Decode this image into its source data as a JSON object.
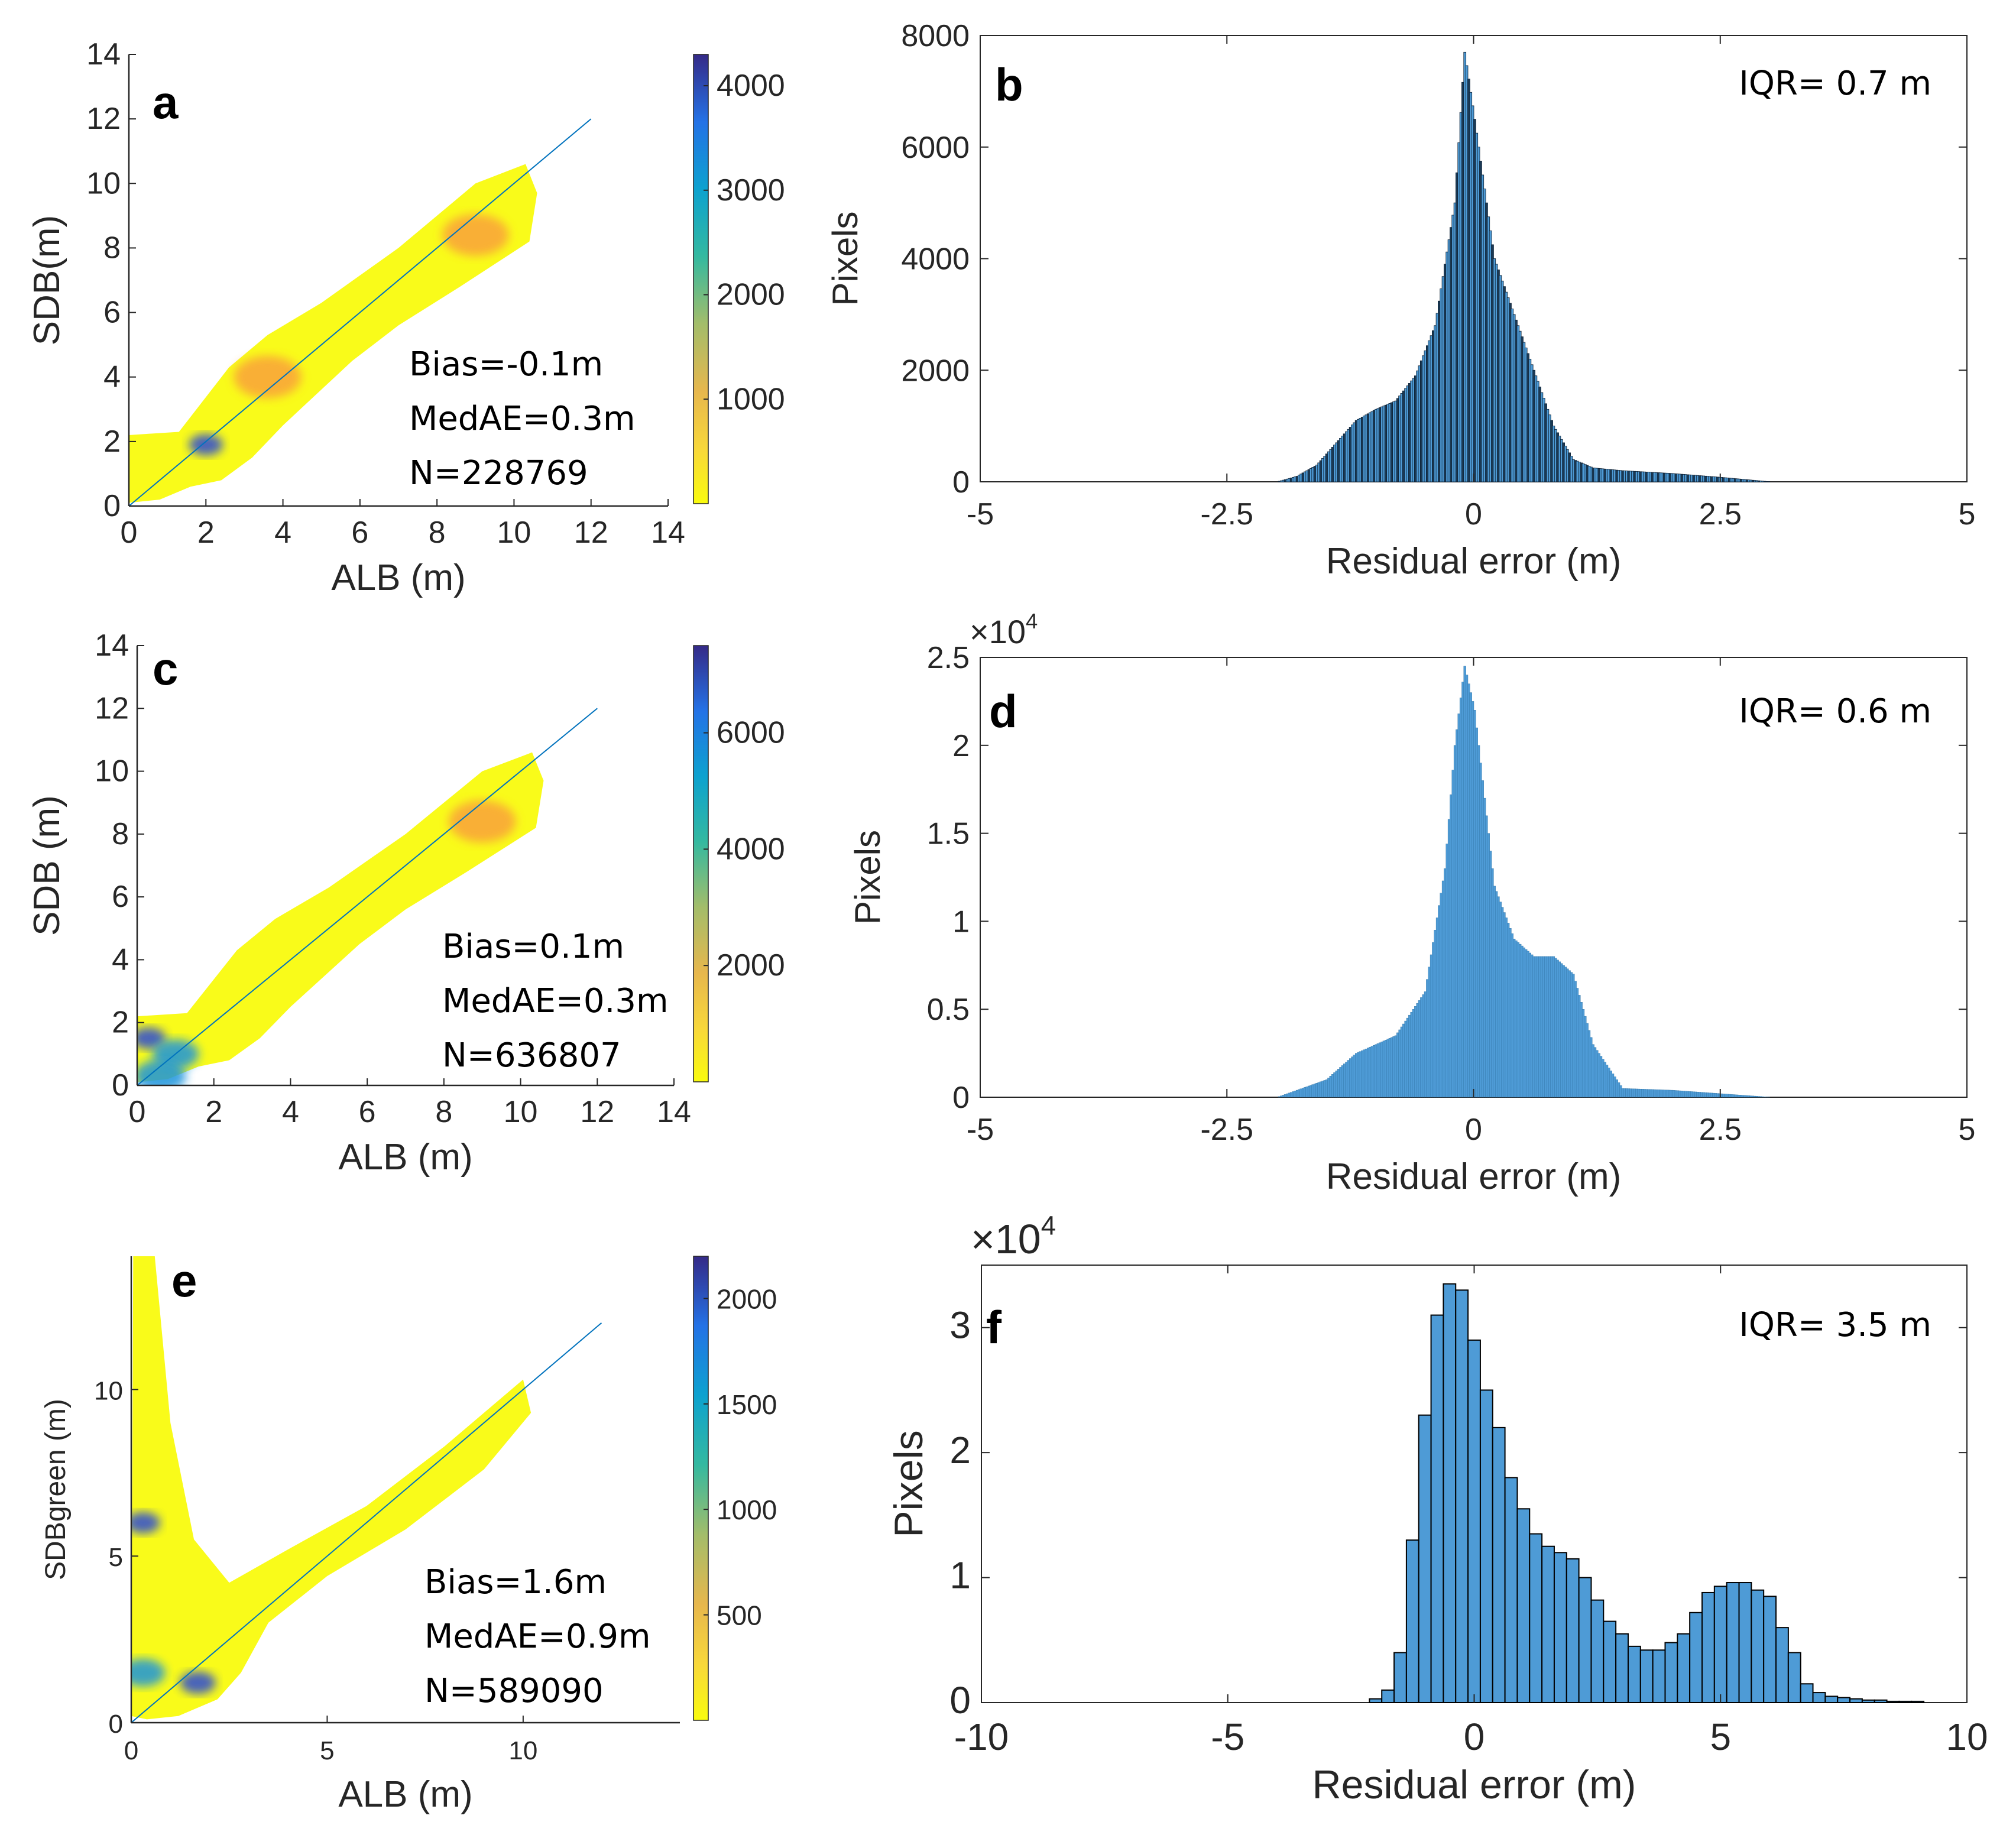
{
  "figure": {
    "panels": [
      {
        "id": "a",
        "letter": "a",
        "title": ""
      },
      {
        "id": "b",
        "letter": "b",
        "title": ""
      },
      {
        "id": "c",
        "letter": "c",
        "title": ""
      },
      {
        "id": "d",
        "letter": "d",
        "title": ""
      },
      {
        "id": "e",
        "letter": "e",
        "title": ""
      },
      {
        "id": "f",
        "letter": "f",
        "title": ""
      }
    ]
  },
  "colors": {
    "axis": "#262626",
    "one_to_one_line": "#0072BD",
    "density_low": "#F9FB0E",
    "density_mid": "#F9A23B",
    "density_high": "#352A87",
    "hist_fill": "#4E9BD6",
    "hist_edge": "#0B1F33"
  },
  "chart_data": [
    {
      "id": "a",
      "type": "scatter",
      "title": "",
      "letter": "a",
      "xlabel": "ALB (m)",
      "ylabel": "SDB(m)",
      "xlim": [
        0,
        14
      ],
      "ylim": [
        0,
        14
      ],
      "xticks": [
        0,
        2,
        4,
        6,
        8,
        10,
        12,
        14
      ],
      "yticks": [
        0,
        2,
        4,
        6,
        8,
        10,
        12,
        14
      ],
      "one_to_one_line": [
        [
          0,
          0
        ],
        [
          12,
          12
        ]
      ],
      "density_hotspots": [
        {
          "x": 2.0,
          "y": 1.9,
          "count": 4300
        },
        {
          "x": 9.0,
          "y": 8.4,
          "count": 600
        },
        {
          "x": 3.6,
          "y": 4.0,
          "count": 500
        }
      ],
      "colorbar": {
        "min": 0,
        "max": 4300,
        "ticks": [
          1000,
          2000,
          3000,
          4000
        ]
      },
      "stats": [
        "Bias=-0.1m",
        "MedAE=0.3m",
        "N=228769"
      ]
    },
    {
      "id": "b",
      "type": "bar",
      "title": "",
      "letter": "b",
      "xlabel": "Residual error (m)",
      "ylabel": "Pixels",
      "xlim": [
        -5,
        5
      ],
      "ylim": [
        0,
        8000
      ],
      "xticks": [
        -5,
        -2.5,
        0,
        2.5,
        5
      ],
      "xtick_labels": [
        "-5",
        "-2.5",
        "0",
        "2.5",
        "5"
      ],
      "yticks": [
        0,
        2000,
        4000,
        6000,
        8000
      ],
      "ytick_labels": [
        "0",
        "2000",
        "4000",
        "6000",
        "8000"
      ],
      "multiplier": "",
      "annotation": "IQR=  0.7 m",
      "x": [
        -2.0,
        -1.8,
        -1.6,
        -1.4,
        -1.2,
        -1.0,
        -0.8,
        -0.6,
        -0.4,
        -0.2,
        -0.1,
        0.0,
        0.2,
        0.4,
        0.6,
        0.8,
        1.0,
        1.2,
        1.5,
        2.0,
        2.5,
        3.0
      ],
      "values": [
        0,
        100,
        300,
        700,
        1100,
        1300,
        1450,
        1900,
        2800,
        5000,
        7700,
        6500,
        4000,
        3000,
        2000,
        1000,
        400,
        250,
        200,
        150,
        80,
        0
      ]
    },
    {
      "id": "c",
      "type": "scatter",
      "title": "",
      "letter": "c",
      "xlabel": "ALB (m)",
      "ylabel": "SDB (m)",
      "xlim": [
        0,
        14
      ],
      "ylim": [
        0,
        14
      ],
      "xticks": [
        0,
        2,
        4,
        6,
        8,
        10,
        12,
        14
      ],
      "yticks": [
        0,
        2,
        4,
        6,
        8,
        10,
        12,
        14
      ],
      "one_to_one_line": [
        [
          0,
          0
        ],
        [
          12,
          12
        ]
      ],
      "density_hotspots": [
        {
          "x": 0.3,
          "y": 1.5,
          "count": 7500
        },
        {
          "x": 1.0,
          "y": 1.0,
          "count": 5000
        },
        {
          "x": 0.6,
          "y": 0.3,
          "count": 4000
        },
        {
          "x": 9.0,
          "y": 8.4,
          "count": 900
        }
      ],
      "colorbar": {
        "min": 0,
        "max": 7500,
        "ticks": [
          2000,
          4000,
          6000
        ]
      },
      "stats": [
        "Bias=0.1m",
        "MedAE=0.3m",
        "N=636807"
      ]
    },
    {
      "id": "d",
      "type": "bar",
      "title": "",
      "letter": "d",
      "xlabel": "Residual error (m)",
      "ylabel": "Pixels",
      "xlim": [
        -5,
        5
      ],
      "ylim": [
        0,
        2.5
      ],
      "xticks": [
        -5,
        -2.5,
        0,
        2.5,
        5
      ],
      "xtick_labels": [
        "-5",
        "-2.5",
        "0",
        "2.5",
        "5"
      ],
      "yticks": [
        0,
        0.5,
        1,
        1.5,
        2,
        2.5
      ],
      "ytick_labels": [
        "0",
        "0.5",
        "1",
        "1.5",
        "2",
        "2.5"
      ],
      "multiplier": "×10",
      "multiplier_exp": "4",
      "annotation": "IQR= 0.6 m",
      "x": [
        -2.0,
        -1.5,
        -1.2,
        -1.0,
        -0.8,
        -0.5,
        -0.3,
        -0.2,
        -0.1,
        0.0,
        0.2,
        0.4,
        0.6,
        0.8,
        1.0,
        1.2,
        1.5,
        2.0,
        2.5,
        3.0
      ],
      "values": [
        0,
        0.1,
        0.25,
        0.3,
        0.35,
        0.6,
        1.3,
        2.0,
        2.45,
        2.2,
        1.2,
        0.9,
        0.8,
        0.8,
        0.7,
        0.3,
        0.05,
        0.04,
        0.02,
        0
      ]
    },
    {
      "id": "e",
      "type": "scatter",
      "title": "",
      "letter": "e",
      "xlabel": "ALB (m)",
      "ylabel": "SDBgreen (m)",
      "xlim": [
        0,
        14
      ],
      "ylim": [
        0,
        14
      ],
      "xticks": [
        0,
        5,
        10
      ],
      "yticks": [
        0,
        5,
        10
      ],
      "one_to_one_line": [
        [
          0,
          0
        ],
        [
          12,
          12
        ]
      ],
      "density_hotspots": [
        {
          "x": 0.3,
          "y": 6.0,
          "count": 2200
        },
        {
          "x": 1.7,
          "y": 1.2,
          "count": 2100
        },
        {
          "x": 0.3,
          "y": 1.5,
          "count": 1600
        }
      ],
      "colorbar": {
        "min": 0,
        "max": 2200,
        "ticks": [
          500,
          1000,
          1500,
          2000
        ]
      },
      "stats": [
        "Bias=1.6m",
        "MedAE=0.9m",
        "N=589090"
      ]
    },
    {
      "id": "f",
      "type": "bar",
      "title": "",
      "letter": "f",
      "xlabel": "Residual error (m)",
      "ylabel": "Pixels",
      "xlim": [
        -10,
        10
      ],
      "ylim": [
        0,
        3.5
      ],
      "xticks": [
        -10,
        -5,
        0,
        5,
        10
      ],
      "xtick_labels": [
        "-10",
        "-5",
        "0",
        "5",
        "10"
      ],
      "yticks": [
        0,
        1,
        2,
        3
      ],
      "ytick_labels": [
        "0",
        "1",
        "2",
        "3"
      ],
      "multiplier": "×10",
      "multiplier_exp": "4",
      "annotation": "IQR=  3.5 m",
      "bin_width": 0.25,
      "x": [
        -2.0,
        -1.75,
        -1.5,
        -1.25,
        -1.0,
        -0.75,
        -0.5,
        -0.25,
        0.0,
        0.25,
        0.5,
        0.75,
        1.0,
        1.25,
        1.5,
        1.75,
        2.0,
        2.25,
        2.5,
        2.75,
        3.0,
        3.25,
        3.5,
        3.75,
        4.0,
        4.25,
        4.5,
        4.75,
        5.0,
        5.25,
        5.5,
        5.75,
        6.0,
        6.25,
        6.5,
        6.75,
        7.0,
        7.25,
        7.5,
        7.75,
        8.0,
        8.25,
        8.5,
        8.75,
        9.0,
        9.25
      ],
      "values": [
        0.03,
        0.1,
        0.4,
        1.3,
        2.3,
        3.1,
        3.35,
        3.3,
        2.9,
        2.5,
        2.2,
        1.8,
        1.55,
        1.35,
        1.25,
        1.2,
        1.15,
        1.0,
        0.82,
        0.65,
        0.55,
        0.45,
        0.42,
        0.42,
        0.48,
        0.55,
        0.72,
        0.88,
        0.93,
        0.96,
        0.96,
        0.9,
        0.85,
        0.6,
        0.4,
        0.15,
        0.08,
        0.05,
        0.04,
        0.03,
        0.02,
        0.02,
        0.01,
        0.01,
        0.01,
        0
      ]
    }
  ]
}
